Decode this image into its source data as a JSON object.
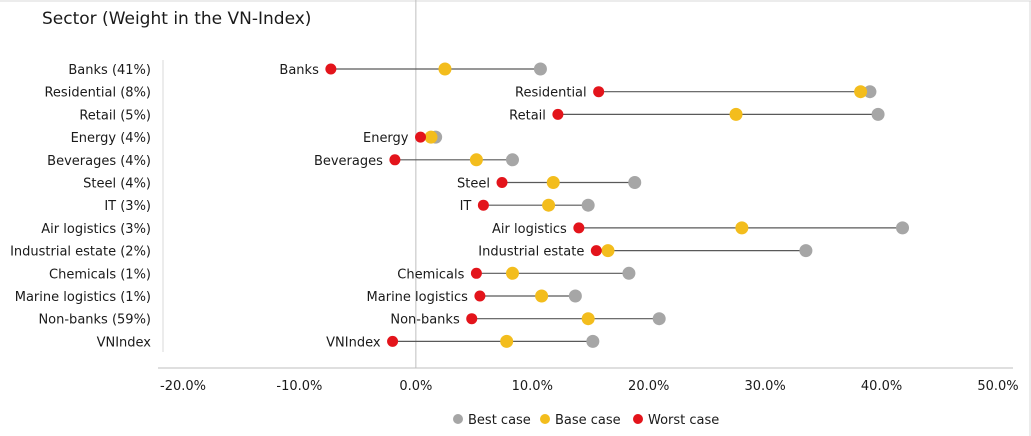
{
  "chart_data": {
    "type": "scatter",
    "title": "Sector (Weight in the VN-Index)",
    "xlim": [
      -0.2,
      0.5
    ],
    "x_ticks": [
      -0.2,
      -0.1,
      0.0,
      0.1,
      0.2,
      0.3,
      0.4,
      0.5
    ],
    "x_tick_labels": [
      "-20.0%",
      "-10.0%",
      "0.0%",
      "10.0%",
      "20.0%",
      "30.0%",
      "40.0%",
      "50.0%"
    ],
    "grid": false,
    "legend_position": "bottom",
    "categories": [
      "Banks (41%)",
      "Residential (8%)",
      "Retail (5%)",
      "Energy (4%)",
      "Beverages (4%)",
      "Steel (4%)",
      "IT (3%)",
      "Air logistics (3%)",
      "Industrial estate (2%)",
      "Chemicals (1%)",
      "Marine logistics (1%)",
      "Non-banks (59%)",
      "VNIndex"
    ],
    "point_labels": [
      "Banks",
      "Residential",
      "Retail",
      "Energy",
      "Beverages",
      "Steel",
      "IT",
      "Air logistics",
      "Industrial estate",
      "Chemicals",
      "Marine logistics",
      "Non-banks",
      "VNIndex"
    ],
    "series": [
      {
        "name": "Best case",
        "color": "#a6a6a6",
        "values": [
          0.107,
          0.39,
          0.397,
          0.017,
          0.083,
          0.188,
          0.148,
          0.418,
          0.335,
          0.183,
          0.137,
          0.209,
          0.152
        ]
      },
      {
        "name": "Base case",
        "color": "#f3bd1d",
        "values": [
          0.025,
          0.382,
          0.275,
          0.013,
          0.052,
          0.118,
          0.114,
          0.28,
          0.165,
          0.083,
          0.108,
          0.148,
          0.078
        ]
      },
      {
        "name": "Worst case",
        "color": "#e3141b",
        "values": [
          -0.073,
          0.157,
          0.122,
          0.004,
          -0.018,
          0.074,
          0.058,
          0.14,
          0.155,
          0.052,
          0.055,
          0.048,
          -0.02
        ]
      }
    ]
  }
}
